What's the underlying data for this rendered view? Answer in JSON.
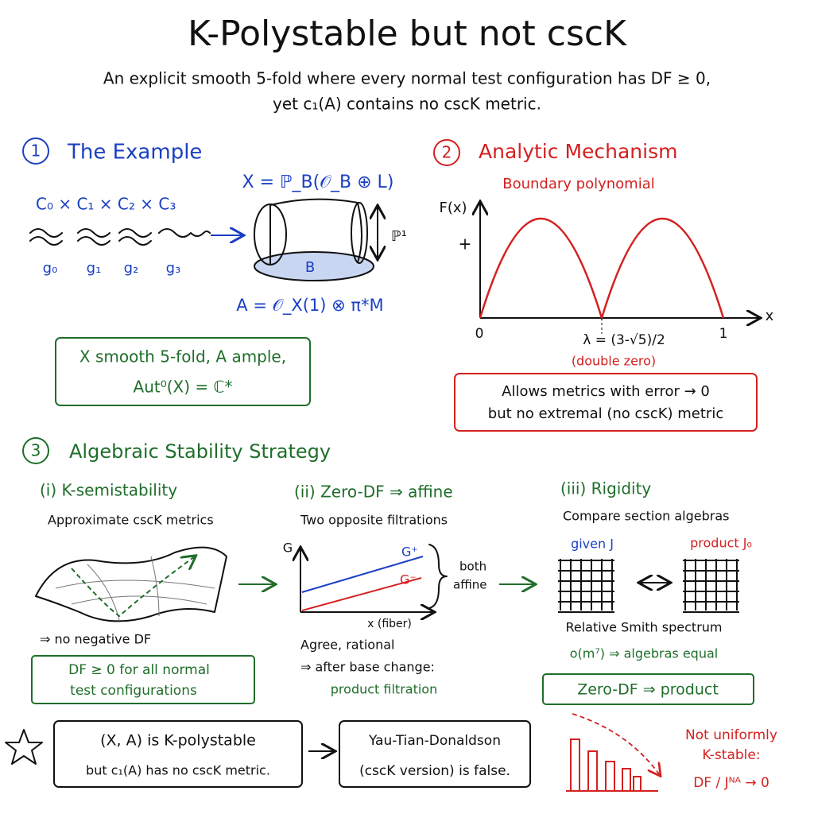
{
  "title": "K-Polystable but not cscK",
  "subtitle": [
    "An explicit smooth 5-fold where every normal test configuration has DF ≥ 0,",
    "yet c₁(A) contains no cscK metric."
  ],
  "example": {
    "number": "1",
    "heading": "The Example",
    "curves": "C₀ × C₁ × C₂ × C₃",
    "genera": [
      "g₀",
      "g₁",
      "g₂",
      "g₃"
    ],
    "bundle": "X = ℙ_B(𝒪_B ⊕ L)",
    "fiber": "ℙ¹",
    "base": "B",
    "polarization": "A = 𝒪_X(1) ⊗ π*M",
    "box": [
      "X smooth 5-fold, A ample,",
      "Aut⁰(X) = ℂ*"
    ]
  },
  "analytic": {
    "number": "2",
    "heading": "Analytic Mechanism",
    "plot_title": "Boundary polynomial",
    "y_label": "F(x)",
    "sign": "+",
    "x_label": "x",
    "x_start": "0",
    "x_end": "1",
    "lambda": "λ = (3-√5)/2",
    "lambda_note": "(double zero)",
    "box": [
      "Allows metrics with error → 0",
      "but no extremal (no cscK) metric"
    ]
  },
  "strategy": {
    "number": "3",
    "heading": "Algebraic Stability Strategy",
    "step_i": {
      "heading": "(i) K-semistability",
      "text": "Approximate cscK metrics",
      "conclusion": "⇒ no negative DF",
      "box": [
        "DF ≥ 0 for all normal",
        "test configurations"
      ]
    },
    "step_ii": {
      "heading": "(ii) Zero-DF ⇒ affine",
      "text": "Two opposite filtrations",
      "y_axis": "G",
      "x_axis": "x (fiber)",
      "g_plus": "G⁺",
      "g_minus": "G⁻",
      "brace": [
        "both",
        "affine"
      ],
      "lines": [
        "Agree, rational",
        "⇒ after base change:"
      ],
      "highlight": "product filtration"
    },
    "step_iii": {
      "heading": "(iii) Rigidity",
      "text": "Compare section algebras",
      "left": "given J",
      "right": "product J₀",
      "lines": [
        "Relative Smith spectrum",
        "o(m⁷) ⇒ algebras equal"
      ],
      "box": "Zero-DF ⇒ product"
    }
  },
  "conclusion": {
    "box_left": [
      "(X, A) is K-polystable",
      "but c₁(A) has no cscK metric."
    ],
    "box_right": [
      "Yau-Tian-Donaldson",
      "(cscK version) is false."
    ],
    "note": [
      "Not uniformly",
      "K-stable:",
      "DF / Jᴺᴬ → 0"
    ]
  }
}
